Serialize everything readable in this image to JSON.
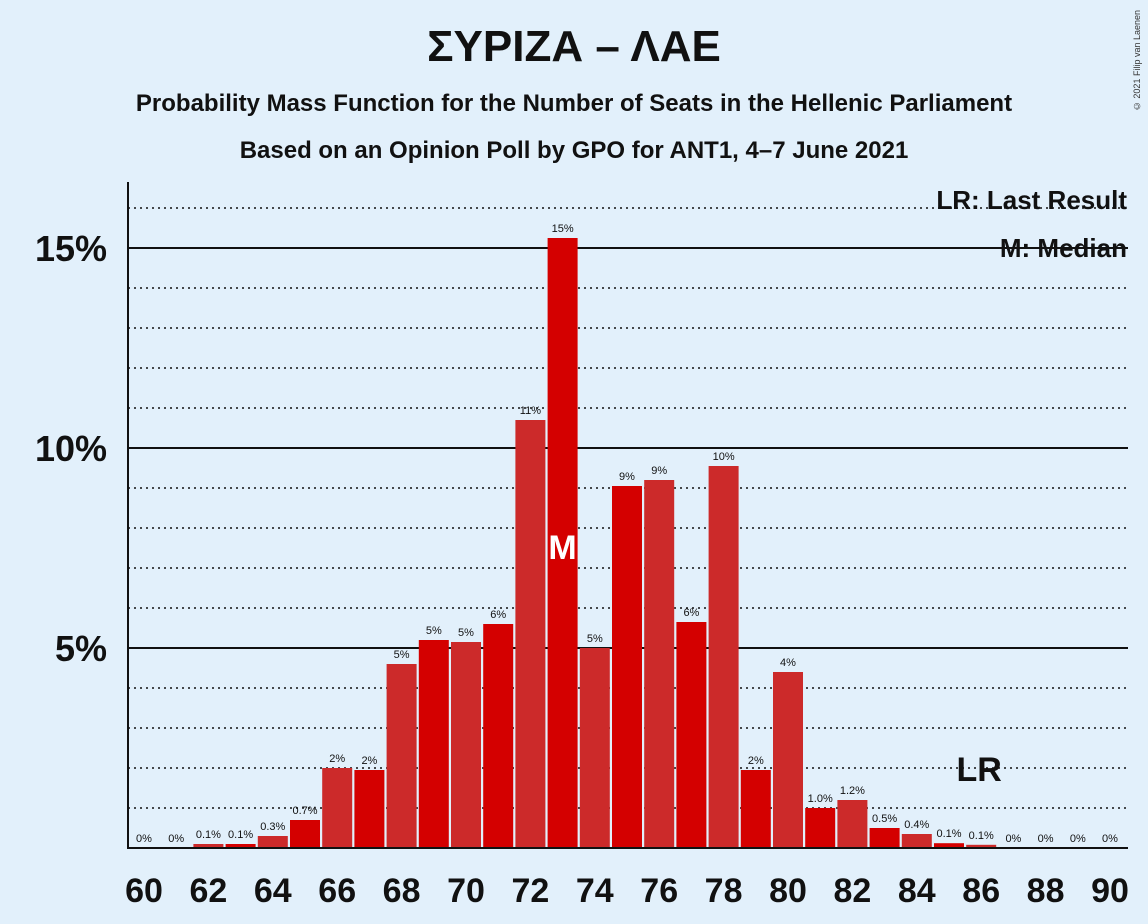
{
  "header": {
    "title": "ΣΥΡΙΖΑ – ΛΑΕ",
    "subtitle1": "Probability Mass Function for the Number of Seats in the Hellenic Parliament",
    "subtitle2": "Based on an Opinion Poll by GPO for ANT1, 4–7 June 2021",
    "copyright": "© 2021 Filip van Laenen"
  },
  "legend": {
    "last_result": "LR: Last Result",
    "median": "M: Median",
    "placement": "top-right"
  },
  "colors": {
    "background": "#e2f0fb",
    "bar_dark": "#d40000",
    "bar_light": "#cc2a2a",
    "text": "#111111"
  },
  "chart_data": {
    "type": "bar",
    "x": [
      60,
      61,
      62,
      63,
      64,
      65,
      66,
      67,
      68,
      69,
      70,
      71,
      72,
      73,
      74,
      75,
      76,
      77,
      78,
      79,
      80,
      81,
      82,
      83,
      84,
      85,
      86,
      87,
      88,
      89,
      90
    ],
    "values": [
      0,
      0,
      0.1,
      0.1,
      0.3,
      0.7,
      2.0,
      1.95,
      4.6,
      5.2,
      5.15,
      5.6,
      10.7,
      15.25,
      5.0,
      9.05,
      9.2,
      5.65,
      9.55,
      1.95,
      4.4,
      1.0,
      1.2,
      0.5,
      0.35,
      0.12,
      0.08,
      0,
      0,
      0,
      0
    ],
    "labels": [
      "0%",
      "0%",
      "0.1%",
      "0.1%",
      "0.3%",
      "0.7%",
      "2%",
      "2%",
      "5%",
      "5%",
      "5%",
      "6%",
      "11%",
      "15%",
      "5%",
      "9%",
      "9%",
      "6%",
      "10%",
      "2%",
      "4%",
      "1.0%",
      "1.2%",
      "0.5%",
      "0.4%",
      "0.1%",
      "0.1%",
      "0%",
      "0%",
      "0%",
      "0%"
    ],
    "ylim": [
      0,
      16.7
    ],
    "yticks": [
      5,
      10,
      15
    ],
    "ytick_labels": [
      "5%",
      "10%",
      "15%"
    ],
    "xtick_values": [
      60,
      62,
      64,
      66,
      68,
      70,
      72,
      74,
      76,
      78,
      80,
      82,
      84,
      86,
      88,
      90
    ],
    "xtick_labels": [
      "60",
      "62",
      "64",
      "66",
      "68",
      "70",
      "72",
      "74",
      "76",
      "78",
      "80",
      "82",
      "84",
      "86",
      "88",
      "90"
    ],
    "median": 73,
    "median_label": "M",
    "last_result": 86,
    "last_result_label": "LR",
    "grid": "dotted every 1%, solid every 5%"
  }
}
